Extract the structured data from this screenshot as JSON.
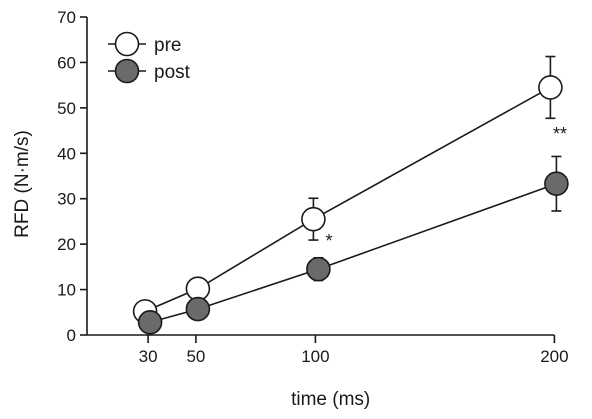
{
  "chart_data": {
    "type": "line",
    "title": "",
    "xlabel": "time (ms)",
    "ylabel": "RFD  (N·m/s)",
    "x": [
      30,
      50,
      100,
      200
    ],
    "xticks": [
      "30",
      "50",
      "100",
      "200"
    ],
    "ylim": [
      0,
      70
    ],
    "yticks": [
      "0",
      "10",
      "20",
      "30",
      "40",
      "50",
      "60",
      "70"
    ],
    "grid": false,
    "legend_position": "top-left",
    "series": [
      {
        "name": "pre",
        "values": [
          5.2,
          10.2,
          25.5,
          54.5
        ],
        "error": [
          0.8,
          1.2,
          4.6,
          6.8
        ],
        "marker_fill": "#ffffff"
      },
      {
        "name": "post",
        "values": [
          2.8,
          5.7,
          14.5,
          33.3
        ],
        "error": [
          0.6,
          1.0,
          2.5,
          6.0
        ],
        "marker_fill": "#6a6a6a"
      }
    ],
    "annotations": [
      {
        "text": "*",
        "x": 100
      },
      {
        "text": "**",
        "x": 200
      }
    ]
  }
}
